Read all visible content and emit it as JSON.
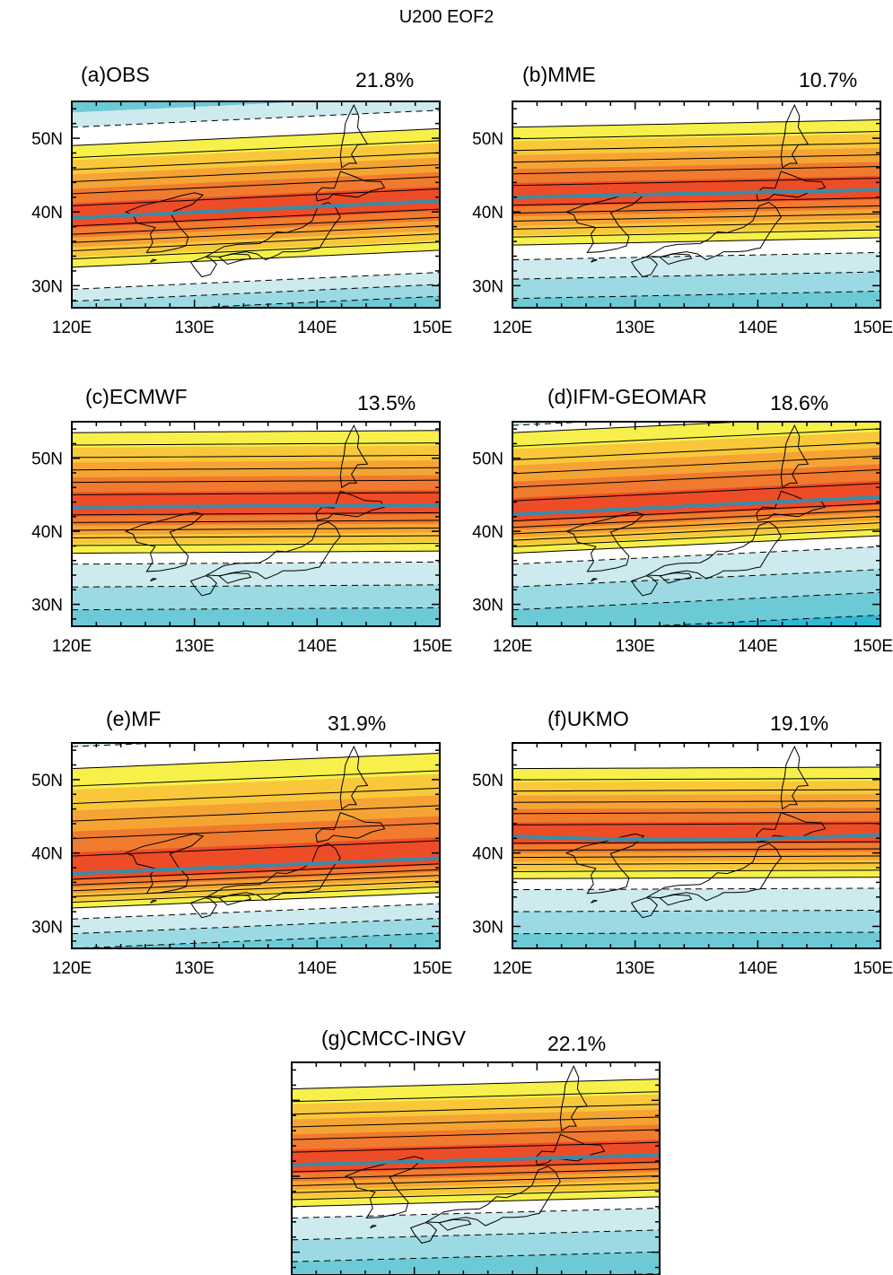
{
  "title": "U200 EOF2",
  "colors": {
    "pos1": "#f7f04a",
    "pos2": "#f9c83a",
    "pos3": "#f5a434",
    "pos4": "#f07a2d",
    "pos5": "#ee4c27",
    "neg1": "#cdeaee",
    "neg2": "#9cdae3",
    "neg3": "#6ccad6",
    "neg4": "#2fb9d5",
    "jet_axis": "#3c8aa5"
  },
  "axes": {
    "x_ticks": [
      "120E",
      "130E",
      "140E",
      "150E"
    ],
    "y_ticks": [
      "30N",
      "40N",
      "50N"
    ]
  },
  "chart_data": [
    {
      "type": "heatmap",
      "label": "(a)OBS",
      "variance": "21.8%",
      "xlim": [
        120,
        150
      ],
      "ylim": [
        27,
        55
      ],
      "jet_axis_lat": [
        39.2,
        41.5
      ],
      "pos_band_lat": [
        32.5,
        49
      ],
      "neg_south_edge": 29.5,
      "neg_north_edge": 51.5
    },
    {
      "type": "heatmap",
      "label": "(b)MME",
      "variance": "10.7%",
      "xlim": [
        120,
        150
      ],
      "ylim": [
        27,
        55
      ],
      "jet_axis_lat": [
        42,
        43
      ],
      "pos_band_lat": [
        35.5,
        51.5
      ],
      "neg_south_edge": 33.5,
      "neg_north_edge": null
    },
    {
      "type": "heatmap",
      "label": "(c)ECMWF",
      "variance": "13.5%",
      "xlim": [
        120,
        150
      ],
      "ylim": [
        27,
        55
      ],
      "jet_axis_lat": [
        43.3,
        43.6
      ],
      "pos_band_lat": [
        37,
        53.5
      ],
      "neg_south_edge": 35.5,
      "neg_north_edge": null
    },
    {
      "type": "heatmap",
      "label": "(d)IFM-GEOMAR",
      "variance": "18.6%",
      "xlim": [
        120,
        150
      ],
      "ylim": [
        27,
        55
      ],
      "jet_axis_lat": [
        42.3,
        44.7
      ],
      "pos_band_lat": [
        37,
        53.5
      ],
      "neg_south_edge": 35.5,
      "neg_north_edge": 54.5
    },
    {
      "type": "heatmap",
      "label": "(e)MF",
      "variance": "31.9%",
      "xlim": [
        120,
        150
      ],
      "ylim": [
        27,
        55
      ],
      "jet_axis_lat": [
        37.2,
        39.3
      ],
      "pos_band_lat": [
        32.5,
        51.5
      ],
      "neg_south_edge": 31,
      "neg_north_edge": 54.5
    },
    {
      "type": "heatmap",
      "label": "(f)UKMO",
      "variance": "19.1%",
      "xlim": [
        120,
        150
      ],
      "ylim": [
        27,
        55
      ],
      "jet_axis_lat": [
        42.3,
        42.5
      ],
      "pos_band_lat": [
        36.5,
        51.5
      ],
      "neg_south_edge": 35,
      "neg_north_edge": null
    },
    {
      "type": "heatmap",
      "label": "(g)CMCC-INGV",
      "variance": "22.1%",
      "xlim": [
        120,
        150
      ],
      "ylim": [
        27,
        55
      ],
      "jet_axis_lat": [
        41.5,
        42.8
      ],
      "pos_band_lat": [
        36,
        51.5
      ],
      "neg_south_edge": 34.5,
      "neg_north_edge": null
    }
  ]
}
